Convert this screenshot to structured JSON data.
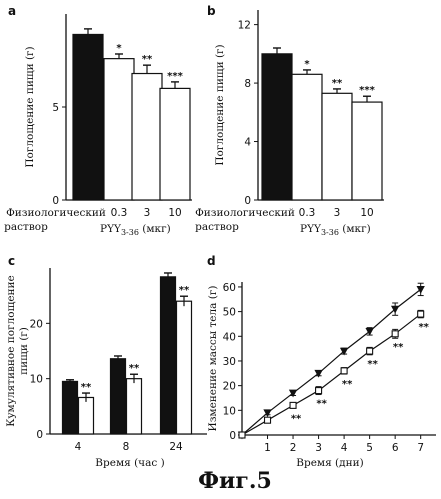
{
  "figure_title": "Фиг.5",
  "chart_data": [
    {
      "panel": "a",
      "type": "bar",
      "categories": [
        "Физиологический раствор",
        "0.3",
        "3",
        "10"
      ],
      "xlabel_left_line1": "Физиологический",
      "xlabel_left_line2": "раствор",
      "xlabel_right": "PYY3-36 (мкг)",
      "ylabel": "Поглощение пищи (г)",
      "ylim": [
        0,
        10
      ],
      "yticks": [
        0,
        5
      ],
      "values": [
        8.9,
        7.6,
        6.8,
        6.0
      ],
      "errors": [
        0.3,
        0.25,
        0.45,
        0.35
      ],
      "fills": [
        "#111111",
        "#ffffff",
        "#ffffff",
        "#ffffff"
      ],
      "annotations": [
        "",
        "*",
        "**",
        "***"
      ]
    },
    {
      "panel": "b",
      "type": "bar",
      "categories": [
        "Физиологический раствор",
        "0.3",
        "3",
        "10"
      ],
      "xlabel_left_line1": "Физиологический",
      "xlabel_left_line2": "раствор",
      "xlabel_right": "PYY3-36 (мкг)",
      "ylabel": "Поглощение пищи (г)",
      "ylim": [
        0,
        13
      ],
      "yticks": [
        0,
        4,
        8,
        12
      ],
      "values": [
        10.0,
        8.6,
        7.3,
        6.7
      ],
      "errors": [
        0.4,
        0.3,
        0.3,
        0.4
      ],
      "fills": [
        "#111111",
        "#ffffff",
        "#ffffff",
        "#ffffff"
      ],
      "annotations": [
        "",
        "*",
        "**",
        "***"
      ]
    },
    {
      "panel": "c",
      "type": "bar",
      "categories": [
        "4",
        "8",
        "24"
      ],
      "xlabel": "Время (час )",
      "ylabel": "Кумулятивное поглощение пищи (г)",
      "ylabel_line1": "Кумулятивное поглощение",
      "ylabel_line2": "пищи (г)",
      "ylim": [
        0,
        30
      ],
      "yticks": [
        0,
        10,
        20
      ],
      "series": [
        {
          "fill": "#111111",
          "values": [
            9.5,
            13.6,
            28.4
          ],
          "errors": [
            0.3,
            0.5,
            0.7
          ]
        },
        {
          "fill": "#ffffff",
          "values": [
            6.6,
            10.0,
            24.0
          ],
          "errors": [
            0.8,
            0.8,
            0.9
          ]
        }
      ],
      "annotations": [
        "**",
        "**",
        "**"
      ]
    },
    {
      "panel": "d",
      "type": "line",
      "x": [
        0,
        1,
        2,
        3,
        4,
        5,
        6,
        7
      ],
      "xticks": [
        1,
        2,
        3,
        4,
        5,
        6,
        7
      ],
      "xlabel": "Время (дни)",
      "ylabel": "Изменение массы тела (г)",
      "ylim": [
        0,
        62
      ],
      "yticks": [
        0,
        10,
        20,
        30,
        40,
        50,
        60
      ],
      "xlim": [
        0,
        7.6
      ],
      "series": [
        {
          "marker": "triangle-down",
          "values": [
            0,
            9,
            17,
            25,
            34,
            42,
            51,
            59
          ],
          "errors": [
            0,
            0.8,
            1.0,
            1.0,
            1.2,
            1.5,
            2.5,
            2.5
          ]
        },
        {
          "marker": "square",
          "values": [
            0,
            6,
            12,
            18,
            26,
            34,
            41,
            49
          ],
          "errors": [
            0,
            0.8,
            1.0,
            1.6,
            1.3,
            1.5,
            1.8,
            1.5
          ]
        }
      ],
      "annotations": [
        "",
        "",
        "**",
        "**",
        "**",
        "**",
        "**",
        "**"
      ]
    }
  ]
}
